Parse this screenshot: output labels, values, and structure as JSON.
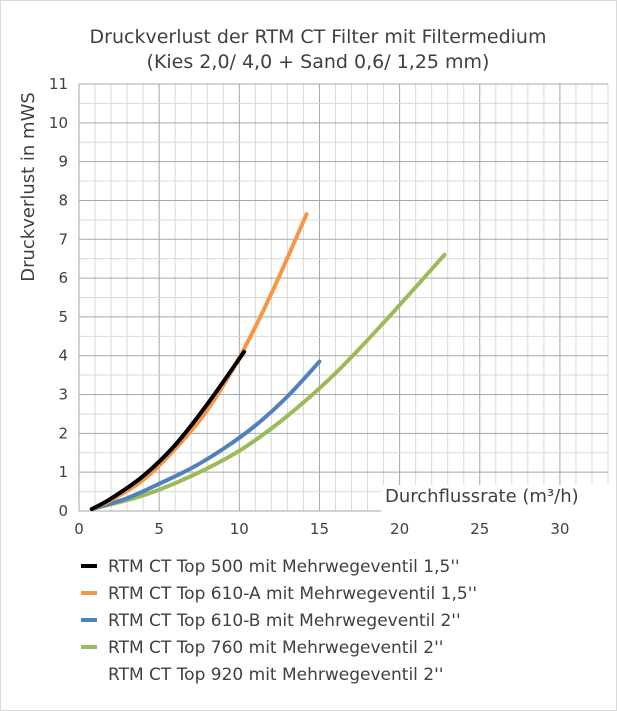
{
  "chart_data": {
    "type": "line",
    "title": "Druckverlust der RTM CT Filter mit Filtermedium",
    "subtitle": "(Kies 2,0/ 4,0 + Sand 0,6/ 1,25 mm)",
    "xlabel": "Durchflussrate (m³/h)",
    "ylabel": "Druckverlust in mWS",
    "xlim": [
      0,
      33
    ],
    "ylim": [
      0,
      11
    ],
    "x_ticks": [
      0,
      5,
      10,
      15,
      20,
      25,
      30
    ],
    "y_ticks": [
      0,
      1,
      2,
      3,
      4,
      5,
      6,
      7,
      8,
      9,
      10,
      11
    ],
    "grid": true,
    "legend_position": "bottom",
    "series": [
      {
        "name": "RTM CT Top 500 mit Mehrwegeventil 1,5''",
        "color": "#000000",
        "x": [
          0.8,
          2,
          4,
          6,
          8,
          10.3
        ],
        "y": [
          0.05,
          0.32,
          0.9,
          1.7,
          2.75,
          4.1
        ]
      },
      {
        "name": "RTM CT Top 610-A mit Mehrwegeventil 1,5''",
        "color": "#f79646",
        "x": [
          0.8,
          2,
          4,
          6,
          8,
          10,
          12,
          14.2
        ],
        "y": [
          0.05,
          0.28,
          0.8,
          1.6,
          2.6,
          3.95,
          5.6,
          7.65
        ]
      },
      {
        "name": "RTM CT Top 610-B mit Mehrwegeventil 2''",
        "color": "#4f81bd",
        "x": [
          0.8,
          3,
          5,
          7,
          9,
          11,
          13,
          15
        ],
        "y": [
          0.05,
          0.33,
          0.7,
          1.1,
          1.6,
          2.2,
          2.95,
          3.85
        ]
      },
      {
        "name": "RTM CT Top 760 mit Mehrwegeventil 2''",
        "color": "#9bbb59",
        "x": [
          0.8,
          4,
          7,
          10,
          13,
          16,
          19,
          22.8
        ],
        "y": [
          0.05,
          0.4,
          0.9,
          1.55,
          2.45,
          3.55,
          4.85,
          6.6
        ]
      },
      {
        "name": "RTM CT Top 920 mit Mehrwegeventil 2''",
        "color": "#7f7f7f",
        "x": [],
        "y": []
      }
    ]
  }
}
